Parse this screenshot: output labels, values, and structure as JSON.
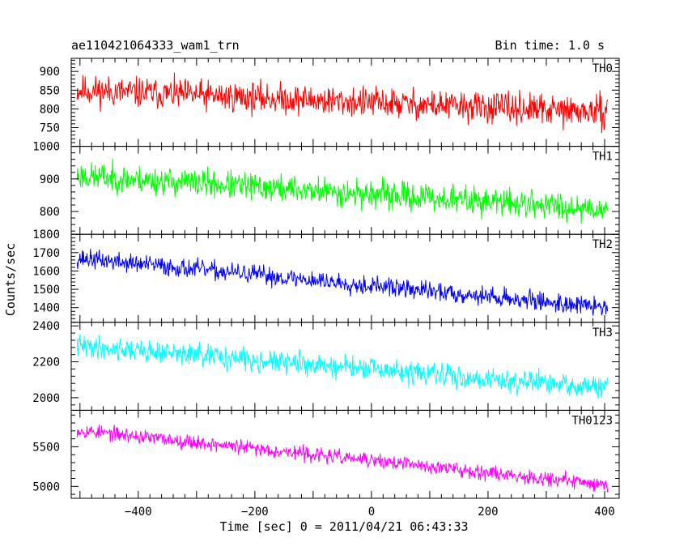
{
  "header": {
    "title": "ae110421064333_wam1_trn",
    "bin_time": "Bin time: 1.0 s"
  },
  "axes": {
    "xlabel": "Time [sec] 0 = 2011/04/21 06:43:33",
    "ylabel": "Counts/sec"
  },
  "chart_data": {
    "type": "line",
    "title": "ae110421064333_wam1_trn",
    "xlabel": "Time [sec] 0 = 2011/04/21 06:43:33",
    "ylabel": "Counts/sec",
    "xlim": [
      -515,
      425
    ],
    "xticks": [
      -400,
      -200,
      0,
      200,
      400
    ],
    "x_start": -505,
    "x_end": 405,
    "x_step": 1,
    "grid": false,
    "series": [
      {
        "name": "TH0",
        "color": "#ff0000",
        "ylim": [
          700,
          935
        ],
        "yticks": [
          750,
          800,
          850,
          900
        ],
        "ytick_labels": [
          "750",
          "800",
          "850",
          "900"
        ],
        "trend_start": 850,
        "trend_end": 790,
        "noise": 38,
        "seed": 11
      },
      {
        "name": "TH1",
        "color": "#00ff00",
        "ylim": [
          730,
          1000
        ],
        "yticks": [
          800,
          900,
          1000
        ],
        "ytick_labels": [
          "800",
          "900",
          "1000"
        ],
        "trend_start": 910,
        "trend_end": 808,
        "noise": 40,
        "seed": 23
      },
      {
        "name": "TH2",
        "color": "#0000ff",
        "ylim": [
          1320,
          1800
        ],
        "yticks": [
          1400,
          1500,
          1600,
          1700,
          1800
        ],
        "ytick_labels": [
          "1400",
          "1500",
          "1600",
          "1700",
          "1800"
        ],
        "trend_start": 1670,
        "trend_end": 1400,
        "noise": 48,
        "seed": 37
      },
      {
        "name": "TH3",
        "color": "#00ffff",
        "ylim": [
          1930,
          2420
        ],
        "yticks": [
          2000,
          2200,
          2400
        ],
        "ytick_labels": [
          "2000",
          "2200",
          "2400"
        ],
        "trend_start": 2290,
        "trend_end": 2050,
        "noise": 58,
        "seed": 41
      },
      {
        "name": "TH0123",
        "color": "#ff00ff",
        "ylim": [
          4850,
          5960
        ],
        "yticks": [
          5000,
          5500
        ],
        "ytick_labels": [
          "5000",
          "5500"
        ],
        "trend_start": 5710,
        "trend_end": 5020,
        "noise": 85,
        "seed": 53
      }
    ]
  }
}
